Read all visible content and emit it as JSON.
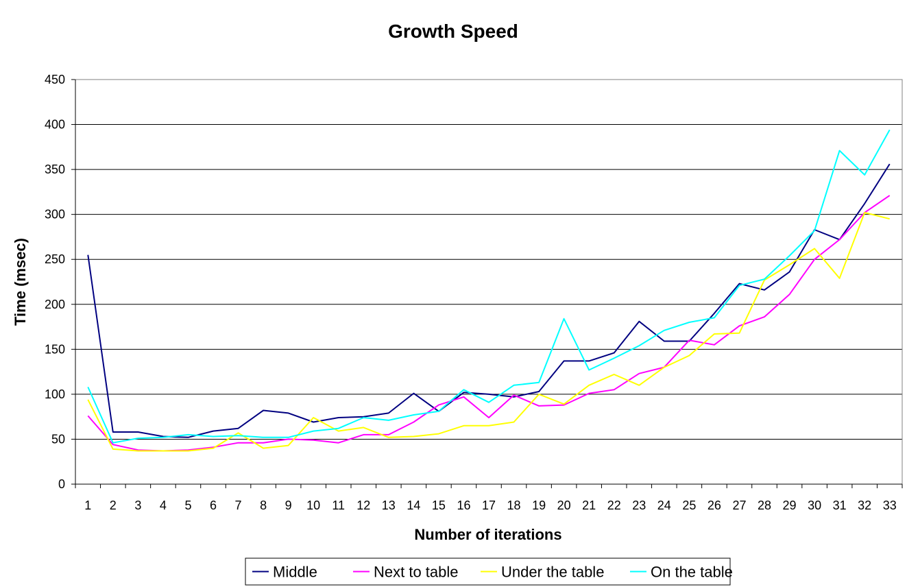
{
  "chart_data": {
    "type": "line",
    "title": "Growth Speed",
    "xlabel": "Number of iterations",
    "ylabel": "Time (msec)",
    "ylim": [
      0,
      450
    ],
    "yticks": [
      "0",
      "50",
      "100",
      "150",
      "200",
      "250",
      "300",
      "350",
      "400",
      "450"
    ],
    "grid": "horizontal",
    "legend_position": "bottom",
    "categories": [
      "1",
      "2",
      "3",
      "4",
      "5",
      "6",
      "7",
      "8",
      "9",
      "10",
      "11",
      "12",
      "13",
      "14",
      "15",
      "16",
      "17",
      "18",
      "19",
      "20",
      "21",
      "22",
      "23",
      "24",
      "25",
      "26",
      "27",
      "28",
      "29",
      "30",
      "31",
      "32",
      "33"
    ],
    "series": [
      {
        "name": "Middle",
        "color": "#000080",
        "values": [
          255,
          58,
          58,
          53,
          52,
          59,
          62,
          82,
          79,
          69,
          74,
          75,
          79,
          101,
          81,
          102,
          100,
          97,
          103,
          137,
          137,
          146,
          181,
          159,
          159,
          190,
          223,
          216,
          236,
          283,
          272,
          312,
          356
        ]
      },
      {
        "name": "Next to table",
        "color": "#FF00FF",
        "values": [
          76,
          44,
          38,
          37,
          38,
          41,
          46,
          46,
          50,
          49,
          46,
          55,
          55,
          69,
          88,
          97,
          74,
          99,
          87,
          88,
          101,
          105,
          123,
          130,
          160,
          155,
          176,
          186,
          211,
          250,
          272,
          302,
          321
        ]
      },
      {
        "name": "Under the table",
        "color": "#FFFF00",
        "values": [
          94,
          39,
          37,
          37,
          37,
          40,
          57,
          40,
          43,
          74,
          59,
          63,
          52,
          53,
          56,
          65,
          65,
          69,
          100,
          89,
          110,
          122,
          110,
          130,
          143,
          167,
          168,
          227,
          244,
          262,
          229,
          302,
          295
        ]
      },
      {
        "name": "On the table",
        "color": "#00FFFF",
        "values": [
          108,
          46,
          51,
          52,
          55,
          53,
          54,
          52,
          52,
          59,
          62,
          74,
          71,
          77,
          81,
          105,
          91,
          110,
          113,
          184,
          127,
          140,
          154,
          171,
          180,
          185,
          221,
          228,
          254,
          282,
          371,
          344,
          394
        ]
      }
    ]
  }
}
